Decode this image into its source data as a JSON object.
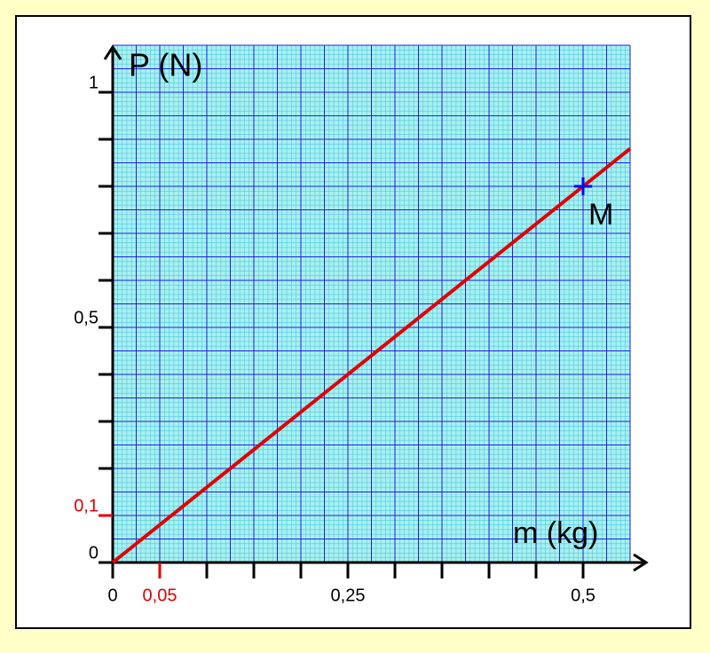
{
  "chart_data": {
    "type": "line",
    "x_label": "m (kg)",
    "y_label": "P (N)",
    "x": [
      0,
      0.5,
      0.55
    ],
    "series": [
      {
        "color": "#e00000",
        "values": [
          0,
          0.8,
          0.88
        ]
      }
    ],
    "point": {
      "x": 0.5,
      "y": 0.8,
      "label": "M",
      "color": "#0000ff"
    },
    "xlim": [
      0,
      0.55
    ],
    "ylim": [
      0,
      1.1
    ],
    "xticks": [
      0,
      {
        "value": 0.05,
        "label": "0,05",
        "color": "#e00000"
      },
      {
        "value": 0.25,
        "label": "0,25"
      },
      {
        "value": 0.5,
        "label": "0,5"
      }
    ],
    "xticks_unlabeled": [
      0.1,
      0.15,
      0.2,
      0.3,
      0.35,
      0.4,
      0.45
    ],
    "yticks": [
      0,
      {
        "value": 0.1,
        "label": "0,1",
        "color": "#e00000"
      },
      {
        "value": 0.5,
        "label": "0,5"
      },
      1
    ],
    "yticks_unlabeled": [
      0.2,
      0.3,
      0.4,
      0.6,
      0.7,
      0.8,
      0.9
    ],
    "grid": {
      "major_x": 0.025,
      "major_y": 0.05,
      "minor_divisions": 5,
      "background": "#a8f0f0",
      "minor_color": "#50c8e0",
      "major_color": "#2020e0"
    }
  }
}
